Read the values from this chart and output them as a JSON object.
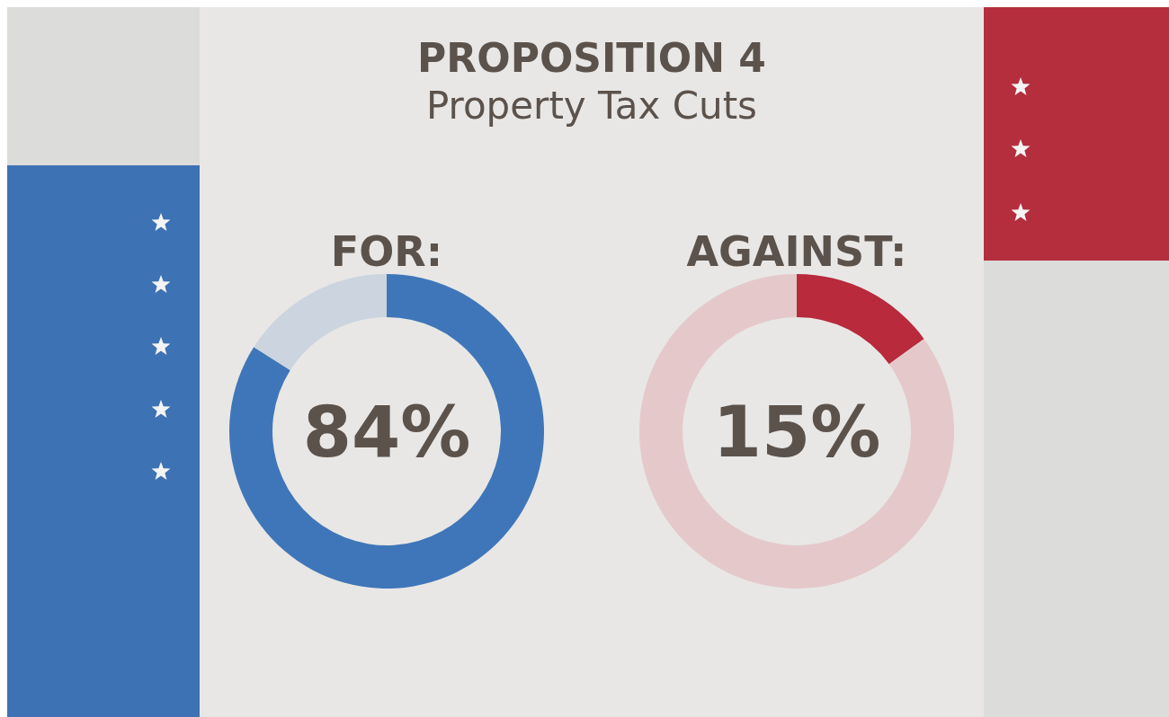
{
  "chart_data": [
    {
      "type": "other",
      "title": "PROPOSITION 4",
      "subtitle": "Property Tax Cuts"
    },
    {
      "type": "donut",
      "title": "FOR:",
      "categories": [
        null,
        null
      ],
      "values": [
        84,
        16
      ],
      "colors": [
        "#3f76b9",
        "#cbd4df"
      ],
      "annotations": [
        "84%"
      ]
    },
    {
      "type": "donut",
      "title": "AGAINST:",
      "categories": [
        null,
        null
      ],
      "values": [
        15,
        85
      ],
      "colors": [
        "#b82a3c",
        "#e5c9ca"
      ],
      "annotations": [
        "15%"
      ]
    }
  ]
}
